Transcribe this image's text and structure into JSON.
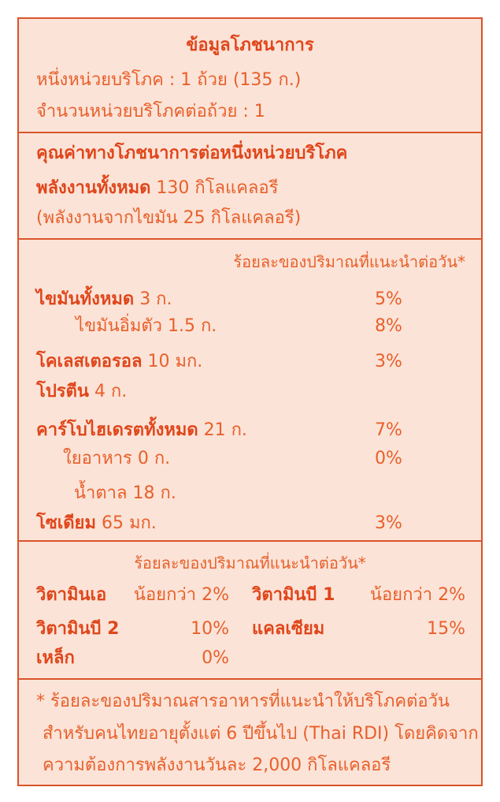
{
  "header": {
    "title": "ข้อมูลโภชนาการ",
    "serving_size": "หนึ่งหน่วยบริโภค : 1 ถ้วย (135 ก.)",
    "servings_per_container": "จำนวนหน่วยบริโภคต่อถ้วย : 1"
  },
  "energy": {
    "heading": "คุณค่าทางโภชนาการต่อหนึ่งหน่วยบริโภค",
    "total_label": "พลังงานทั้งหมด",
    "total_value": "130 กิโลแคลอรี",
    "from_fat": "(พลังงานจากไขมัน 25 กิโลแคลอรี)"
  },
  "nutrients": {
    "dv_heading": "ร้อยละของปริมาณที่แนะนำต่อวัน*",
    "rows": [
      {
        "name": "ไขมันทั้งหมด",
        "amount": "3 ก.",
        "dv": "5%"
      },
      {
        "name": "ไขมันอิ่มตัว",
        "amount": "1.5 ก.",
        "dv": "8%"
      },
      {
        "name": "โคเลสเตอรอล",
        "amount": "10 มก.",
        "dv": "3%"
      },
      {
        "name": "โปรตีน",
        "amount": "4 ก."
      },
      {
        "name": "คาร์โบไฮเดรตทั้งหมด",
        "amount": "21 ก.",
        "dv": "7%"
      },
      {
        "name": "ใยอาหาร",
        "amount": "0 ก.",
        "dv": "0%"
      },
      {
        "name": "น้ำตาล",
        "amount": "18 ก."
      },
      {
        "name": "โซเดียม",
        "amount": "65 มก.",
        "dv": "3%"
      }
    ]
  },
  "vitamins": {
    "heading": "ร้อยละของปริมาณที่แนะนำต่อวัน*",
    "items": [
      {
        "name": "วิตามินเอ",
        "value": "น้อยกว่า 2%"
      },
      {
        "name": "วิตามินบี 1",
        "value": "น้อยกว่า 2%"
      },
      {
        "name": "วิตามินบี 2",
        "value": "10%"
      },
      {
        "name": "แคลเซียม",
        "value": "15%"
      },
      {
        "name": "เหล็ก",
        "value": "0%"
      }
    ]
  },
  "footnote": [
    "* ร้อยละของปริมาณสารอาหารที่แนะนำให้บริโภคต่อวัน",
    "สำหรับคนไทยอายุตั้งแต่ 6 ปีขึ้นไป (Thai RDI) โดยคิดจาก",
    "ความต้องการพลังงานวันละ 2,000 กิโลแคลอรี"
  ]
}
